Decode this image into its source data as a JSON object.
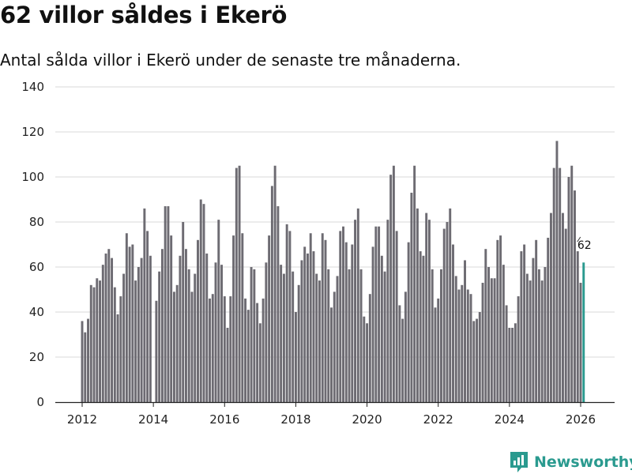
{
  "title": "62 villor såldes i Ekerö",
  "subtitle": "Antal sålda villor i Ekerö under de senaste tre månaderna.",
  "brand": "Newsworthy",
  "colors": {
    "bar": "#6d6b72",
    "highlight": "#2a9a8f",
    "grid": "#d9d9d9",
    "axis": "#222222"
  },
  "chart_data": {
    "type": "bar",
    "title": "62 villor såldes i Ekerö",
    "xlabel": "",
    "ylabel": "",
    "ylim": [
      0,
      140
    ],
    "yticks": [
      0,
      20,
      40,
      60,
      80,
      100,
      120,
      140
    ],
    "xticks": [
      2012,
      2014,
      2016,
      2018,
      2020,
      2022,
      2024,
      2026
    ],
    "start_year": 2012,
    "start_month": 1,
    "grid": true,
    "highlight_last": true,
    "last_label": "62",
    "values": [
      36,
      31,
      37,
      52,
      51,
      55,
      54,
      61,
      66,
      68,
      64,
      51,
      39,
      47,
      57,
      75,
      69,
      70,
      54,
      60,
      64,
      86,
      76,
      65,
      0,
      45,
      58,
      68,
      87,
      87,
      74,
      49,
      52,
      65,
      80,
      68,
      59,
      49,
      57,
      72,
      90,
      88,
      66,
      46,
      48,
      62,
      81,
      61,
      47,
      33,
      47,
      74,
      104,
      105,
      75,
      46,
      41,
      60,
      59,
      44,
      35,
      46,
      62,
      74,
      96,
      105,
      87,
      61,
      57,
      79,
      76,
      58,
      40,
      52,
      63,
      69,
      66,
      75,
      67,
      57,
      54,
      75,
      72,
      59,
      42,
      49,
      56,
      76,
      78,
      71,
      59,
      70,
      81,
      86,
      59,
      38,
      35,
      48,
      69,
      78,
      78,
      65,
      58,
      81,
      101,
      105,
      76,
      43,
      37,
      49,
      71,
      93,
      105,
      86,
      67,
      65,
      84,
      81,
      59,
      42,
      46,
      59,
      77,
      80,
      86,
      70,
      56,
      50,
      52,
      63,
      50,
      48,
      36,
      37,
      40,
      53,
      68,
      60,
      55,
      55,
      72,
      74,
      61,
      43,
      33,
      33,
      35,
      47,
      67,
      70,
      57,
      54,
      64,
      72,
      59,
      54,
      60,
      73,
      84,
      104,
      116,
      104,
      84,
      77,
      100,
      105,
      94,
      67,
      53,
      62
    ]
  }
}
